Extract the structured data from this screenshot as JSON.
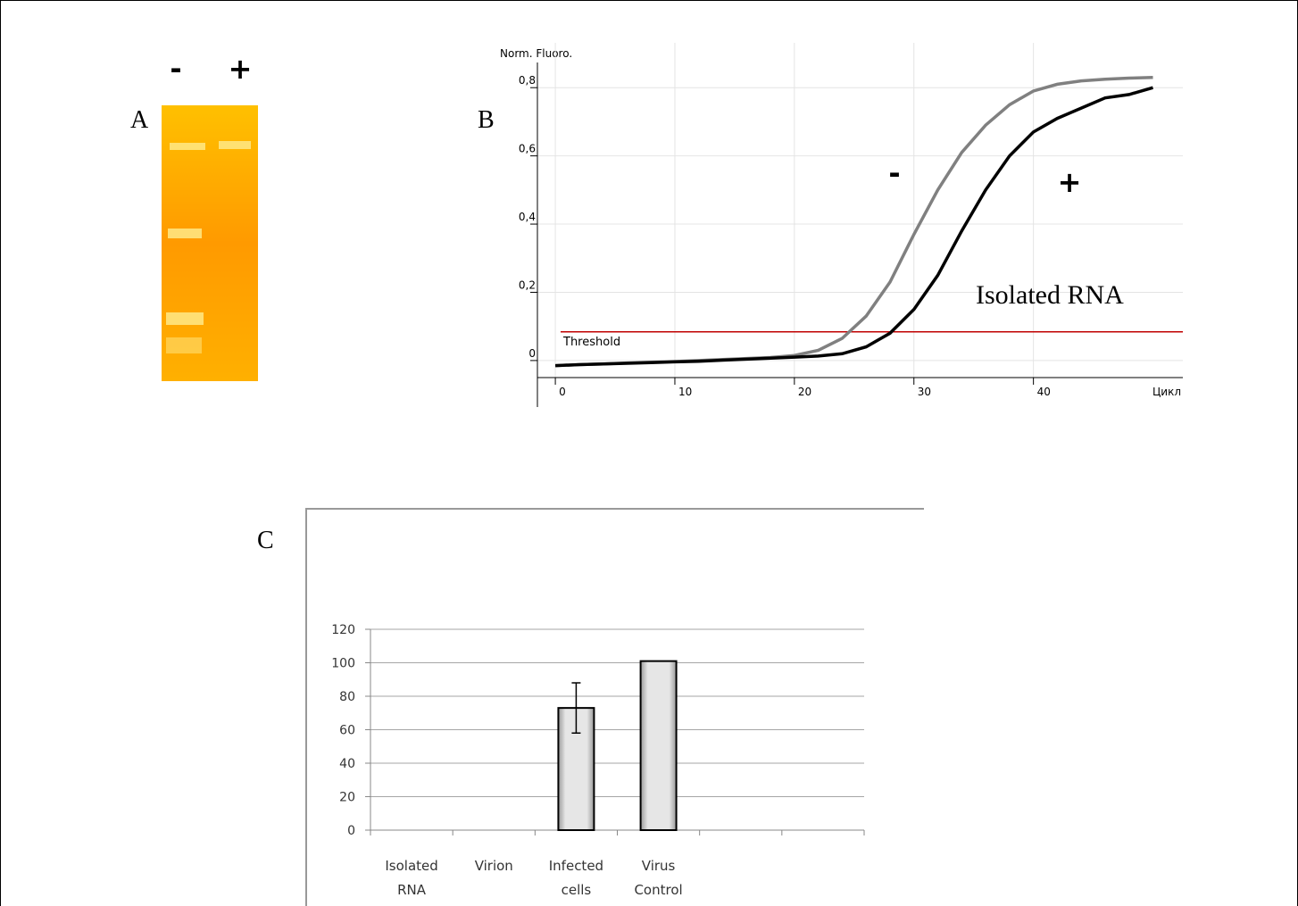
{
  "gel": {
    "label": "A",
    "lanes": [
      "-",
      "+"
    ]
  },
  "chart_data": [
    {
      "type": "line",
      "panel_label": "B",
      "y_label": "Norm. Fluoro.",
      "x_label": "Цикл",
      "x": [
        0,
        2,
        4,
        6,
        8,
        10,
        12,
        14,
        16,
        18,
        20,
        22,
        24,
        26,
        28,
        30,
        32,
        34,
        36,
        38,
        40,
        42,
        44,
        46,
        48,
        50
      ],
      "series": [
        {
          "name": "-",
          "color": "#808080",
          "values": [
            -0.015,
            -0.012,
            -0.01,
            -0.007,
            -0.005,
            -0.003,
            0.0,
            0.003,
            0.006,
            0.009,
            0.015,
            0.03,
            0.065,
            0.13,
            0.23,
            0.37,
            0.5,
            0.61,
            0.69,
            0.75,
            0.79,
            0.81,
            0.82,
            0.825,
            0.828,
            0.83
          ]
        },
        {
          "name": "+",
          "color": "#000000",
          "values": [
            -0.015,
            -0.012,
            -0.01,
            -0.008,
            -0.006,
            -0.004,
            -0.002,
            0.001,
            0.004,
            0.007,
            0.01,
            0.013,
            0.02,
            0.04,
            0.08,
            0.15,
            0.25,
            0.38,
            0.5,
            0.6,
            0.67,
            0.71,
            0.74,
            0.77,
            0.78,
            0.8
          ]
        }
      ],
      "threshold": {
        "label": "Threshold",
        "value": 0.084,
        "color": "#c00000"
      },
      "annotation": "Isolated RNA",
      "xlim": [
        -1.5,
        52.5
      ],
      "ylim": [
        -0.05,
        0.9
      ],
      "xticks": [
        0,
        10,
        20,
        30,
        40
      ],
      "yticks": [
        0,
        {
          "value": 0.2,
          "label": "0,2"
        },
        {
          "value": 0.4,
          "label": "0,4"
        },
        {
          "value": 0.6,
          "label": "0,6"
        },
        {
          "value": 0.8,
          "label": "0,8"
        }
      ],
      "grid": true
    },
    {
      "type": "bar",
      "panel_label": "C",
      "categories": [
        "Isolated RNA",
        "Virion",
        "Infected cells",
        "Virus Control",
        null,
        null
      ],
      "values": [
        0,
        0,
        73,
        101,
        null,
        null
      ],
      "errors": [
        null,
        null,
        15,
        null,
        null,
        null
      ],
      "color": "#d9d9d9",
      "ylim": [
        0,
        120
      ],
      "yticks": [
        0,
        20,
        40,
        60,
        80,
        100,
        120
      ],
      "grid": true
    }
  ]
}
